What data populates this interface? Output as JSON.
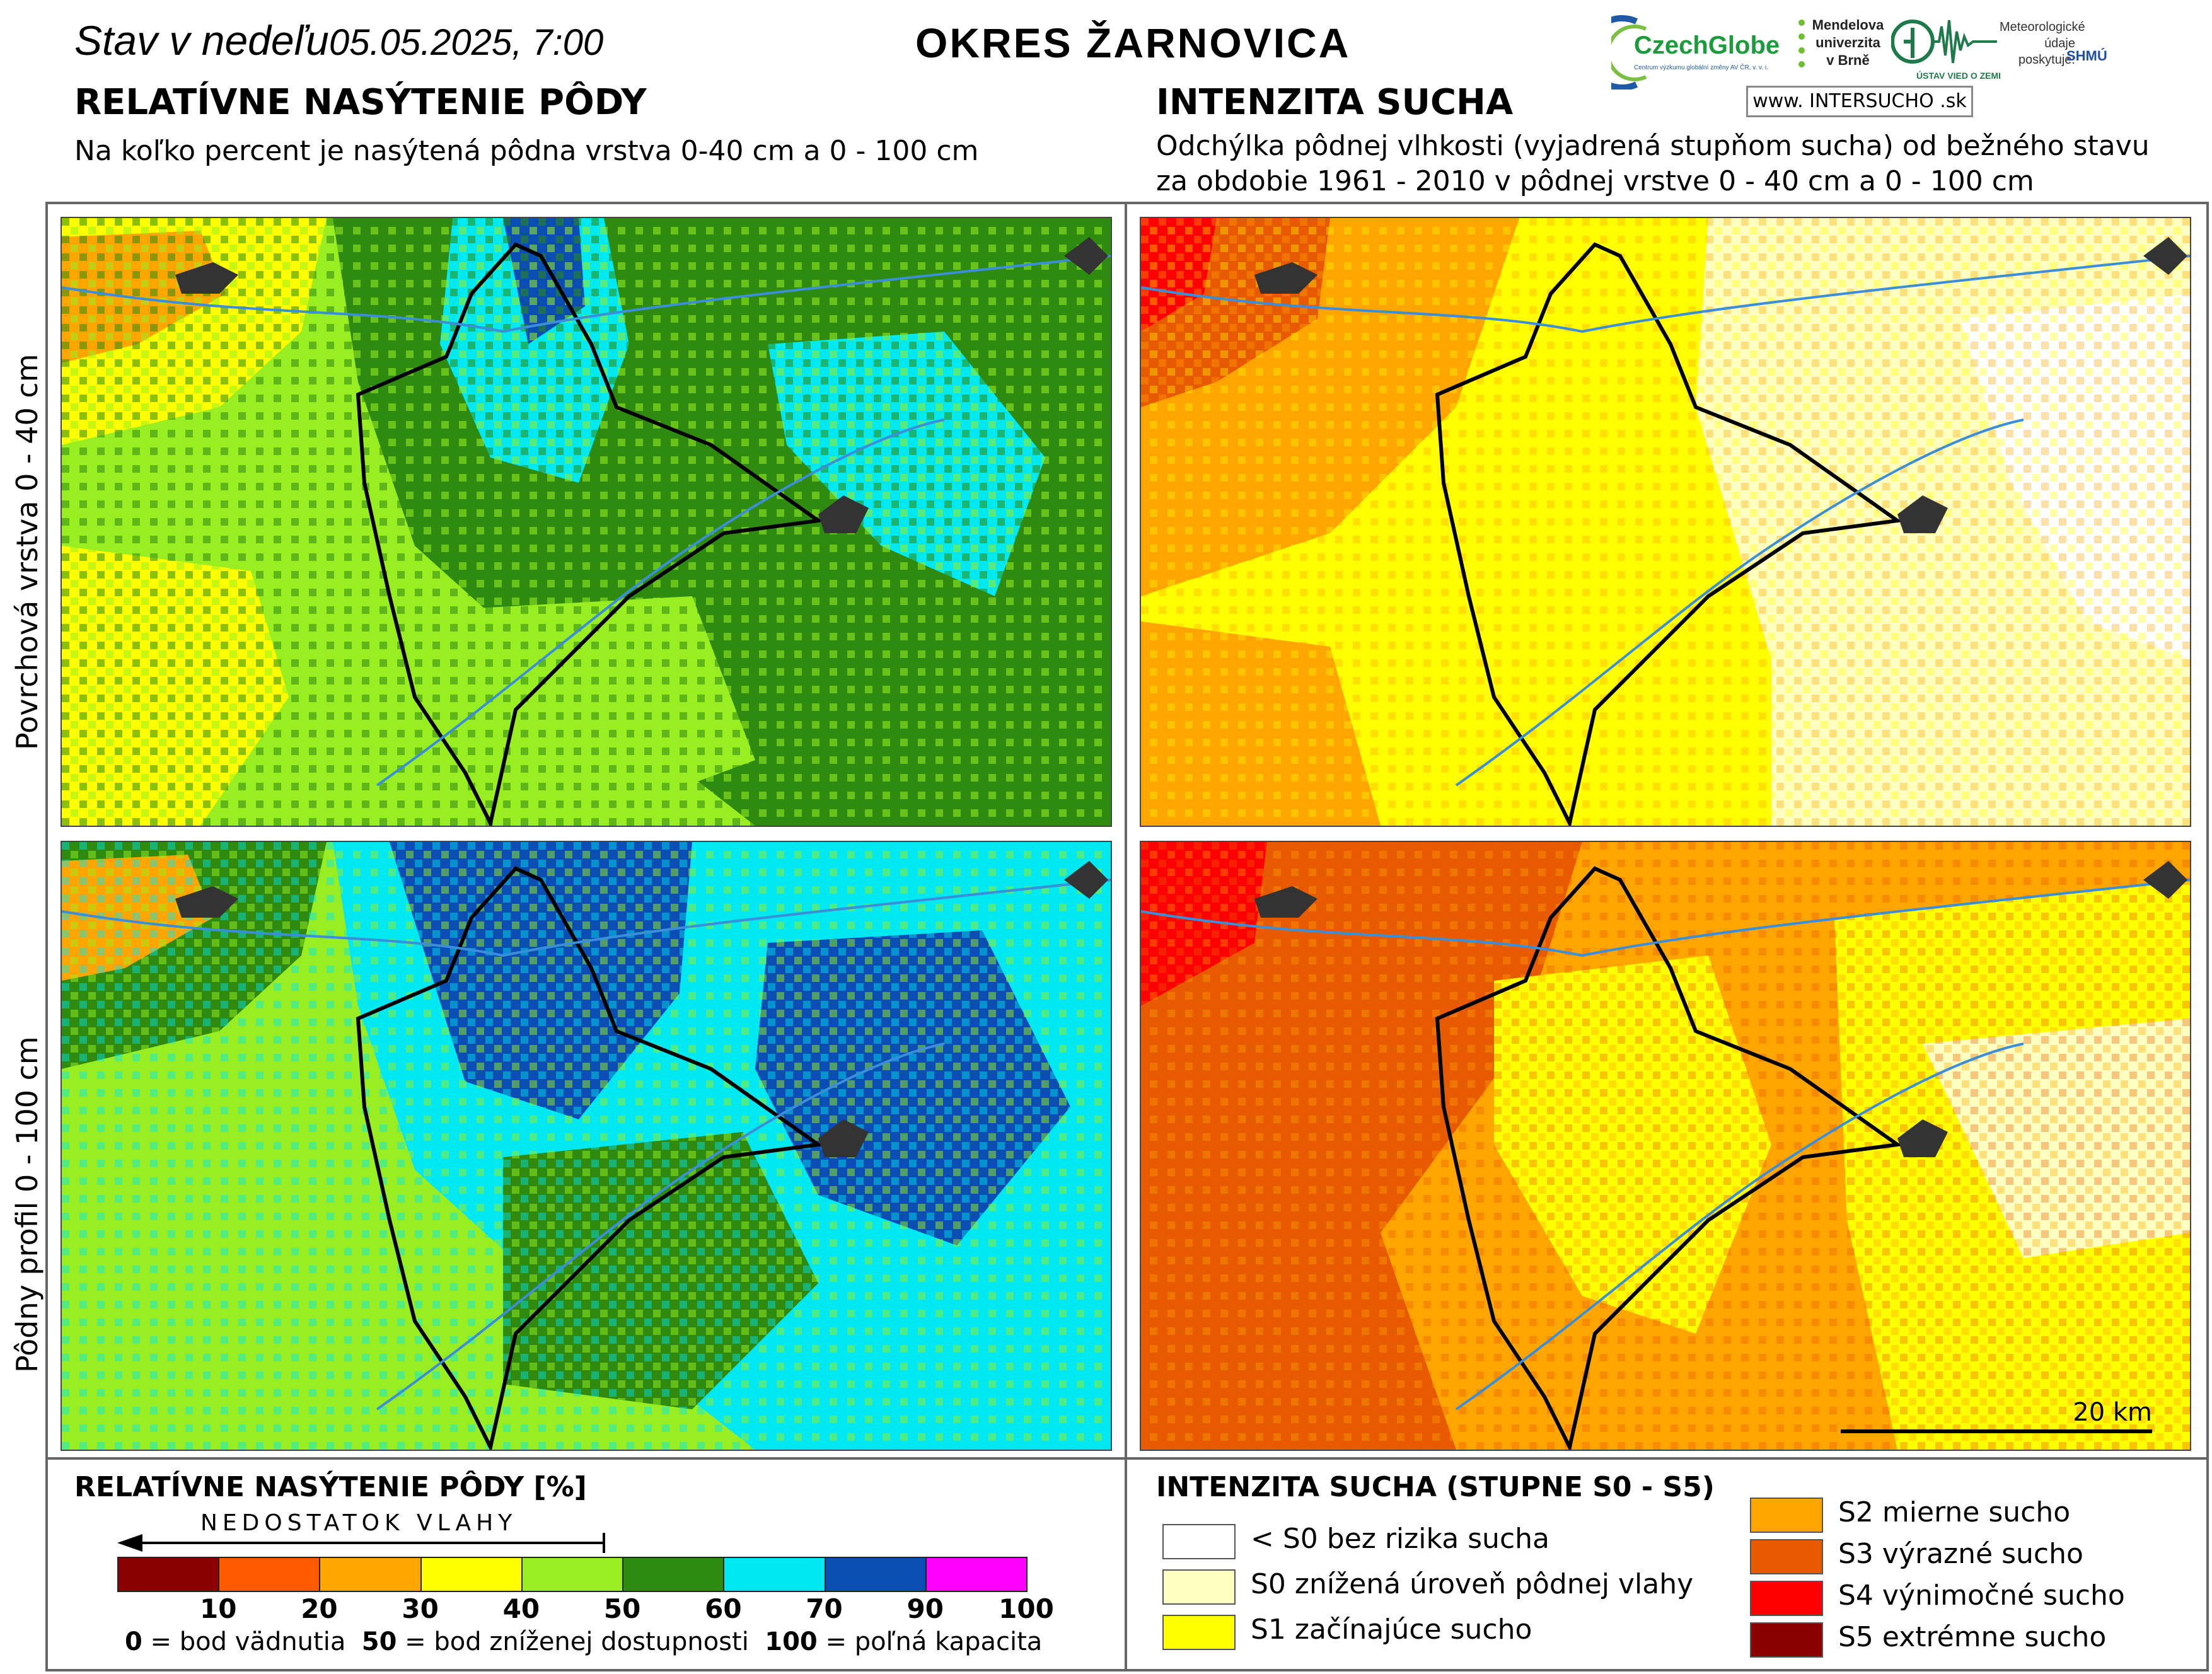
{
  "header": {
    "title_prefix": "Stav v nedeľu",
    "title_date": "05.05.2025, 7:00",
    "district": "OKRES ŽARNOVICA"
  },
  "left": {
    "heading": "RELATÍVNE NASÝTENIE PÔDY",
    "subtitle": "Na koľko percent je nasýtená pôdna vrstva 0-40 cm a 0 - 100 cm"
  },
  "right": {
    "heading": "INTENZITA SUCHA",
    "subtitle_line1": "Odchýlka pôdnej vlhkosti (vyjadrená stupňom sucha) od bežného stavu",
    "subtitle_line2": "za obdobie 1961 - 2010 v pôdnej vrstve 0 - 40 cm a 0 - 100 cm"
  },
  "row_labels": {
    "top": "Povrchová vrstva 0 - 40 cm",
    "bottom": "Pôdny profil 0 - 100 cm"
  },
  "logos": {
    "czechglobe": "CzechGlobe",
    "czechglobe_sub": "Centrum výzkumu globální změny AV ČR, v. v. i.",
    "mendel": "Mendelova univerzita v Brně",
    "uvz": "ÚSTAV VIED O ZEMI",
    "meteo": "Meteorologické údaje poskytuje:",
    "shmu": "SHMÚ",
    "intersucho": "www. INTERSUCHO .sk"
  },
  "scalebar": {
    "label": "20 km"
  },
  "saturation_legend": {
    "title": "RELATÍVNE NASÝTENIE PÔDY [%]",
    "arrow_label": "NEDOSTATOK VLAHY",
    "colors": [
      "#8b0000",
      "#ff5a00",
      "#ffa500",
      "#ffff00",
      "#99ee22",
      "#2e8b10",
      "#00e8f0",
      "#0a4eb4",
      "#ff00ff"
    ],
    "ticks": [
      "10",
      "20",
      "30",
      "40",
      "50",
      "60",
      "70",
      "90",
      "100"
    ],
    "note0": "0",
    "note0_text": " = bod vädnutia",
    "note50": "50",
    "note50_text": " = bod zníženej dostupnosti",
    "note100": "100",
    "note100_text": " = poľná kapacita"
  },
  "drought_legend": {
    "title": "INTENZITA SUCHA (STUPNE S0 - S5)",
    "items_left": [
      {
        "color": "#ffffff",
        "label": "< S0 bez rizika sucha"
      },
      {
        "color": "#ffffc0",
        "label": "S0 znížená úroveň pôdnej vlahy"
      },
      {
        "color": "#ffff00",
        "label": "S1 začínajúce sucho"
      }
    ],
    "items_right": [
      {
        "color": "#ffa500",
        "label": "S2 mierne sucho"
      },
      {
        "color": "#e85a00",
        "label": "S3 výrazné sucho"
      },
      {
        "color": "#ff0000",
        "label": "S4 výnimočné sucho"
      },
      {
        "color": "#8b0000",
        "label": "S5 extrémne sucho"
      }
    ]
  }
}
